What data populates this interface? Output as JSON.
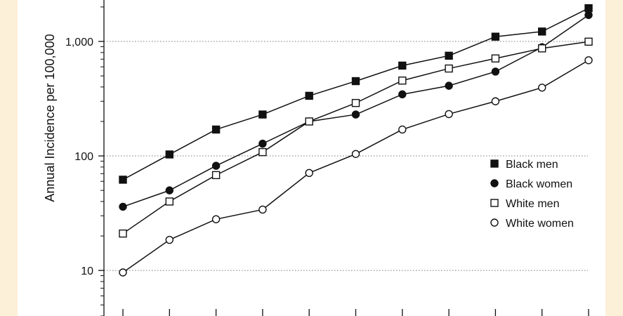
{
  "chart_data": {
    "type": "line",
    "ylabel": "Annual Incidence per 100,000",
    "yscale": "log",
    "ylim": [
      4,
      2300
    ],
    "ytick_values": [
      10,
      100,
      1000
    ],
    "ytick_labels": [
      "10",
      "100",
      "1,000"
    ],
    "x_points": 11,
    "grid": "dotted horizontal at major ticks",
    "legend_position": "right",
    "series": [
      {
        "name": "Black men",
        "marker": "filled-square",
        "values": [
          62,
          103,
          170,
          230,
          335,
          450,
          615,
          750,
          1100,
          1220,
          1950
        ]
      },
      {
        "name": "Black women",
        "marker": "filled-circle",
        "values": [
          36,
          50,
          82,
          128,
          200,
          230,
          345,
          410,
          545,
          890,
          1700
        ]
      },
      {
        "name": "White men",
        "marker": "open-square",
        "values": [
          21,
          40,
          68,
          108,
          200,
          290,
          455,
          580,
          710,
          870,
          995
        ]
      },
      {
        "name": "White women",
        "marker": "open-circle",
        "values": [
          9.6,
          18.5,
          28,
          34,
          71,
          104,
          170,
          232,
          300,
          395,
          685
        ]
      }
    ]
  }
}
